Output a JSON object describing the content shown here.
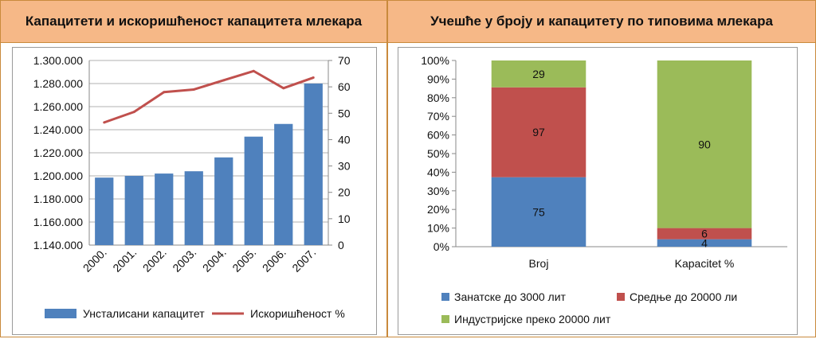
{
  "left_panel": {
    "title": "Капацитети и искоришћеност капацитета млекара"
  },
  "right_panel": {
    "title": "Учешће у броју и капацитету по типовима млекара"
  },
  "colors": {
    "blue": "#4f81bd",
    "red": "#c0504d",
    "green": "#9bbb59"
  },
  "chart_data": [
    {
      "type": "bar",
      "categories": [
        "2000.",
        "2001.",
        "2002.",
        "2003.",
        "2004.",
        "2005.",
        "2006.",
        "2007."
      ],
      "series": [
        {
          "name": "Унсталисани капацитет",
          "type": "bar",
          "axis": "left",
          "values": [
            1198500,
            1200000,
            1202000,
            1204000,
            1216000,
            1234000,
            1245000,
            1280000
          ]
        },
        {
          "name": "Искоришћеност %",
          "type": "line",
          "axis": "right",
          "values": [
            46.5,
            50.5,
            58,
            59,
            62.5,
            66,
            59.5,
            63.5
          ]
        }
      ],
      "y_left": {
        "lim": [
          1140000,
          1300000
        ],
        "ticks": [
          "1.140.000",
          "1.160.000",
          "1.180.000",
          "1.200.000",
          "1.220.000",
          "1.240.000",
          "1.260.000",
          "1.280.000",
          "1.300.000"
        ]
      },
      "y_right": {
        "lim": [
          0,
          70
        ],
        "ticks": [
          "0",
          "10",
          "20",
          "30",
          "40",
          "50",
          "60",
          "70"
        ]
      },
      "legend": "bottom",
      "grid": true
    },
    {
      "type": "bar",
      "stacked": "percent",
      "categories": [
        "Broj",
        "Kapacitet %"
      ],
      "series": [
        {
          "name": "Занатске до 3000 лит",
          "values": [
            75,
            4
          ]
        },
        {
          "name": "Средње до 20000 ли",
          "values": [
            97,
            6
          ]
        },
        {
          "name": "Индустријске преко 20000 лит",
          "values": [
            29,
            90
          ]
        }
      ],
      "y_ticks": [
        "0%",
        "10%",
        "20%",
        "30%",
        "40%",
        "50%",
        "60%",
        "70%",
        "80%",
        "90%",
        "100%"
      ],
      "legend": "bottom",
      "grid": false
    }
  ]
}
